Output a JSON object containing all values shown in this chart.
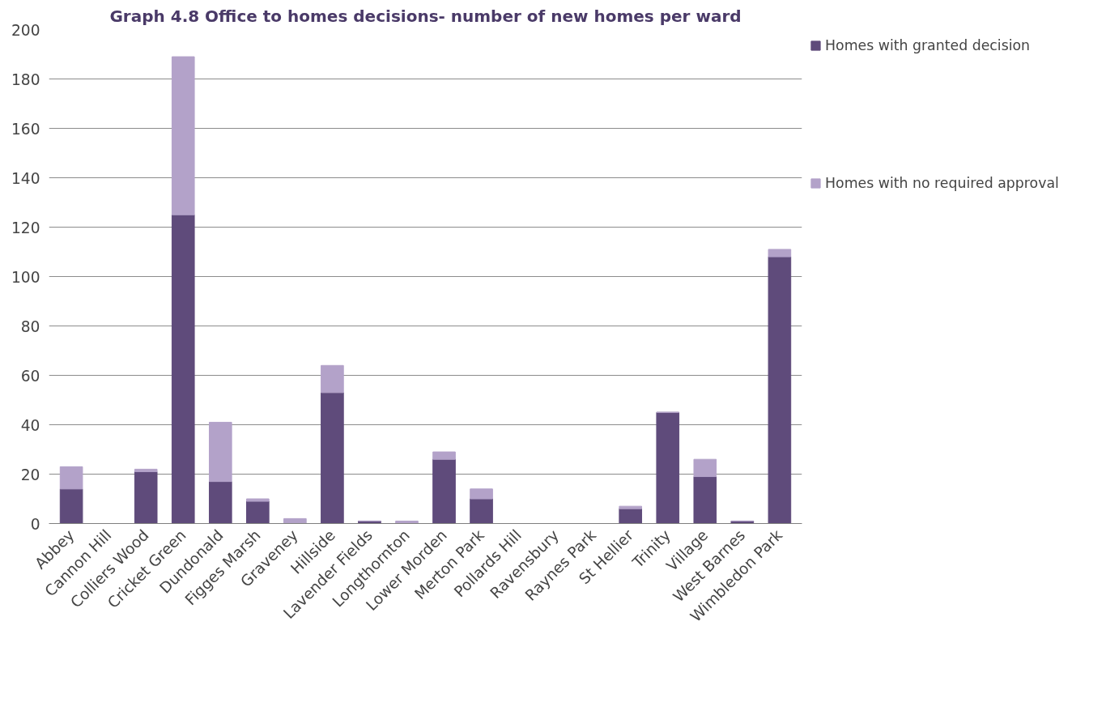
{
  "chart_data": {
    "type": "bar",
    "title": "Graph 4.8 Office to homes decisions- number of new homes per ward",
    "categories": [
      "Abbey",
      "Cannon Hill",
      "Colliers Wood",
      "Cricket Green",
      "Dundonald",
      "Figges Marsh",
      "Graveney",
      "Hillside",
      "Lavender Fields",
      "Longthornton",
      "Lower Morden",
      "Merton Park",
      "Pollards Hill",
      "Ravensbury",
      "Raynes Park",
      "St Hellier",
      "Trinity",
      "Village",
      "West Barnes",
      "Wimbledon Park"
    ],
    "stacked": true,
    "series": [
      {
        "name": "Homes with granted decision",
        "color": "#5f4b7b",
        "values": [
          14,
          0,
          21,
          125,
          17,
          9,
          0,
          53,
          1,
          0,
          26,
          10,
          0,
          0,
          0,
          6,
          45,
          19,
          1,
          108
        ]
      },
      {
        "name": "Homes with no required approval",
        "color": "#b3a2c9",
        "values": [
          9,
          0,
          1,
          64,
          24,
          1,
          2,
          11,
          0,
          1,
          3,
          4,
          0,
          0,
          0,
          1,
          0,
          7,
          0,
          3
        ]
      }
    ],
    "ylim": [
      0,
      200
    ],
    "yticks": [
      0,
      20,
      40,
      60,
      80,
      100,
      120,
      140,
      160,
      180,
      200
    ],
    "grid": "y",
    "legend": "right"
  }
}
